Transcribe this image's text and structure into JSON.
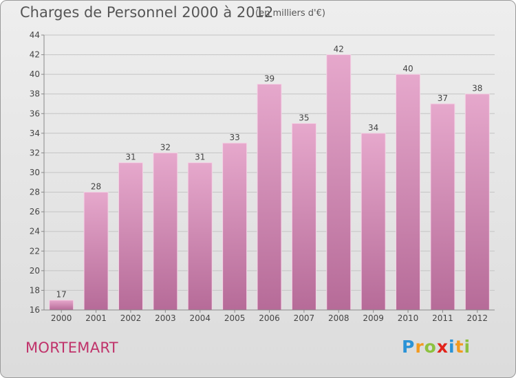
{
  "header": {
    "title": "Charges de Personnel 2000 à 2012",
    "subtitle": "(en milliers d'€)"
  },
  "footer": {
    "commune": "MORTEMART",
    "logo": {
      "letters": [
        "P",
        "r",
        "o",
        "x",
        "i",
        "t",
        "i"
      ],
      "colors": [
        "#2b93d6",
        "#f39a1f",
        "#8dc13f",
        "#e2231a",
        "#2b93d6",
        "#f39a1f",
        "#8dc13f"
      ]
    }
  },
  "chart_data": {
    "type": "bar",
    "categories": [
      "2000",
      "2001",
      "2002",
      "2003",
      "2004",
      "2005",
      "2006",
      "2007",
      "2008",
      "2009",
      "2010",
      "2011",
      "2012"
    ],
    "values": [
      17,
      28,
      31,
      32,
      31,
      33,
      39,
      35,
      42,
      34,
      40,
      37,
      38
    ],
    "ylim": [
      16,
      44
    ],
    "yticks": [
      16,
      18,
      20,
      22,
      24,
      26,
      28,
      30,
      32,
      34,
      36,
      38,
      40,
      42,
      44
    ],
    "grid": true,
    "bar_color_top": "#e6a8cc",
    "bar_color_bottom": "#b66b98"
  }
}
